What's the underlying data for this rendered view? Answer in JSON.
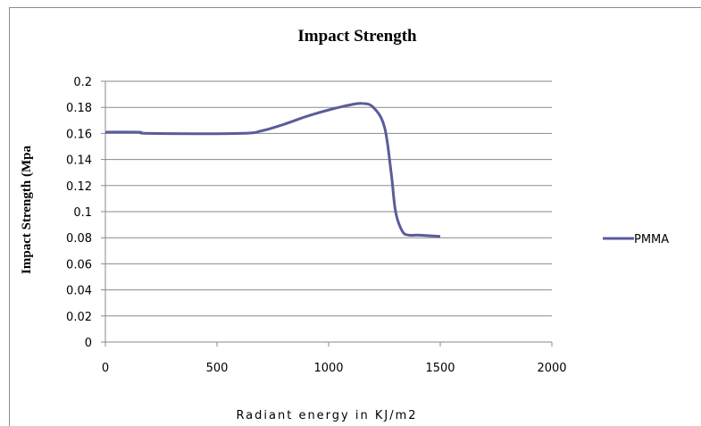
{
  "chart_data": {
    "type": "line",
    "title": "Impact Strength",
    "xlabel": "Radiant energy in KJ/m2",
    "ylabel": "Impact Strength (Mpa",
    "xlim": [
      0,
      2000
    ],
    "ylim": [
      0,
      0.2
    ],
    "x_ticks": [
      "0",
      "500",
      "1000",
      "1500",
      "2000"
    ],
    "y_ticks": [
      "0",
      "0.02",
      "0.04",
      "0.06",
      "0.08",
      "0.1",
      "0.12",
      "0.14",
      "0.16",
      "0.18",
      "0.2"
    ],
    "grid": "horizontal",
    "legend_position": "right",
    "series": [
      {
        "name": "PMMA",
        "color": "#5b5b9b",
        "x": [
          0,
          150,
          200,
          600,
          700,
          800,
          900,
          1000,
          1100,
          1150,
          1200,
          1250,
          1280,
          1300,
          1330,
          1360,
          1400,
          1500
        ],
        "y": [
          0.161,
          0.161,
          0.16,
          0.16,
          0.162,
          0.167,
          0.173,
          0.178,
          0.182,
          0.183,
          0.18,
          0.165,
          0.13,
          0.1,
          0.085,
          0.082,
          0.082,
          0.081
        ]
      }
    ]
  }
}
